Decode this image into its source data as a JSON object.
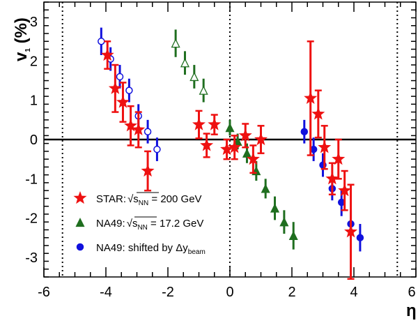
{
  "chart_data": {
    "type": "scatter",
    "title": "",
    "xlabel": "η",
    "ylabel": "v",
    "ylabel_sub": "1",
    "ylabel_unit": " (%)",
    "xlim": [
      -6,
      6
    ],
    "ylim": [
      -3.5,
      3.5
    ],
    "x_ticks": [
      "-6",
      "-4",
      "-2",
      "0",
      "2",
      "4",
      "6"
    ],
    "y_ticks": [
      "-3",
      "-2",
      "-1",
      "0",
      "1",
      "2",
      "3"
    ],
    "vertical_dashed_lines": [
      -5.4,
      0,
      5.4
    ],
    "horizontal_line": 0,
    "legend_position": "bottom-left",
    "colors": {
      "star": "#ee1111",
      "na49": "#1f6e1f",
      "shifted": "#1111dd"
    },
    "series": [
      {
        "key": "star",
        "legend_main": "STAR:",
        "legend_sqrt": "s",
        "legend_sub": "NN",
        "legend_value": " = 200 GeV",
        "marker": "star",
        "points": [
          {
            "x": -3.95,
            "y": 2.15,
            "err": 0.35
          },
          {
            "x": -3.7,
            "y": 1.3,
            "err": 0.6
          },
          {
            "x": -3.45,
            "y": 0.95,
            "err": 0.5
          },
          {
            "x": -3.2,
            "y": 0.35,
            "err": 0.5
          },
          {
            "x": -2.95,
            "y": 0.25,
            "err": 0.45
          },
          {
            "x": -2.65,
            "y": -0.8,
            "err": 0.5
          },
          {
            "x": -1.0,
            "y": 0.38,
            "err": 0.35
          },
          {
            "x": -0.75,
            "y": -0.15,
            "err": 0.3
          },
          {
            "x": -0.5,
            "y": 0.38,
            "err": 0.25
          },
          {
            "x": -0.1,
            "y": -0.25,
            "err": 0.25
          },
          {
            "x": 0.15,
            "y": -0.2,
            "err": 0.3
          },
          {
            "x": 0.5,
            "y": 0.1,
            "err": 0.3
          },
          {
            "x": 0.75,
            "y": -0.5,
            "err": 0.35
          },
          {
            "x": 1.0,
            "y": 0.0,
            "err": 0.35
          },
          {
            "x": 2.6,
            "y": 1.05,
            "err": 1.45
          },
          {
            "x": 2.85,
            "y": 0.65,
            "err": 0.6
          },
          {
            "x": 3.05,
            "y": -0.2,
            "err": 0.55
          },
          {
            "x": 3.3,
            "y": -1.0,
            "err": 0.4
          },
          {
            "x": 3.5,
            "y": -0.5,
            "err": 0.5
          },
          {
            "x": 3.7,
            "y": -1.3,
            "err": 0.5
          },
          {
            "x": 3.9,
            "y": -2.35,
            "err": 1.2
          }
        ]
      },
      {
        "key": "na49",
        "legend_main": "NA49:",
        "legend_sqrt": "s",
        "legend_sub": "NN",
        "legend_value": " = 17.2 GeV",
        "marker": "triangle",
        "points": [
          {
            "x": -1.75,
            "y": 2.45,
            "err": 0.35,
            "open": true
          },
          {
            "x": -1.45,
            "y": 1.95,
            "err": 0.3,
            "open": true
          },
          {
            "x": -1.15,
            "y": 1.6,
            "err": 0.3,
            "open": true
          },
          {
            "x": -0.85,
            "y": 1.25,
            "err": 0.3,
            "open": true
          },
          {
            "x": 0.0,
            "y": 0.3,
            "err": 0.2
          },
          {
            "x": 0.25,
            "y": -0.05,
            "err": 0.2
          },
          {
            "x": 0.55,
            "y": -0.35,
            "err": 0.25
          },
          {
            "x": 0.85,
            "y": -0.8,
            "err": 0.25
          },
          {
            "x": 1.15,
            "y": -1.25,
            "err": 0.25
          },
          {
            "x": 1.45,
            "y": -1.75,
            "err": 0.3
          },
          {
            "x": 1.75,
            "y": -2.1,
            "err": 0.3
          },
          {
            "x": 2.05,
            "y": -2.45,
            "err": 0.35
          }
        ]
      },
      {
        "key": "shifted",
        "legend_main": "NA49: shifted by  ",
        "legend_delta": "Δy",
        "legend_sub": "beam",
        "marker": "circle",
        "points": [
          {
            "x": -4.15,
            "y": 2.5,
            "err": 0.35,
            "open": true
          },
          {
            "x": -3.85,
            "y": 2.05,
            "err": 0.3,
            "open": true
          },
          {
            "x": -3.55,
            "y": 1.6,
            "err": 0.3,
            "open": true
          },
          {
            "x": -3.25,
            "y": 1.25,
            "err": 0.3,
            "open": true
          },
          {
            "x": -2.95,
            "y": 0.6,
            "err": 0.3,
            "open": true
          },
          {
            "x": -2.65,
            "y": 0.2,
            "err": 0.3,
            "open": true
          },
          {
            "x": -2.35,
            "y": -0.25,
            "err": 0.3,
            "open": true
          },
          {
            "x": 2.4,
            "y": 0.2,
            "err": 0.3
          },
          {
            "x": 2.7,
            "y": -0.25,
            "err": 0.3
          },
          {
            "x": 3.0,
            "y": -0.65,
            "err": 0.3
          },
          {
            "x": 3.3,
            "y": -1.25,
            "err": 0.3
          },
          {
            "x": 3.6,
            "y": -1.6,
            "err": 0.35
          },
          {
            "x": 3.9,
            "y": -2.15,
            "err": 0.35
          },
          {
            "x": 4.2,
            "y": -2.5,
            "err": 0.35
          }
        ]
      }
    ]
  }
}
